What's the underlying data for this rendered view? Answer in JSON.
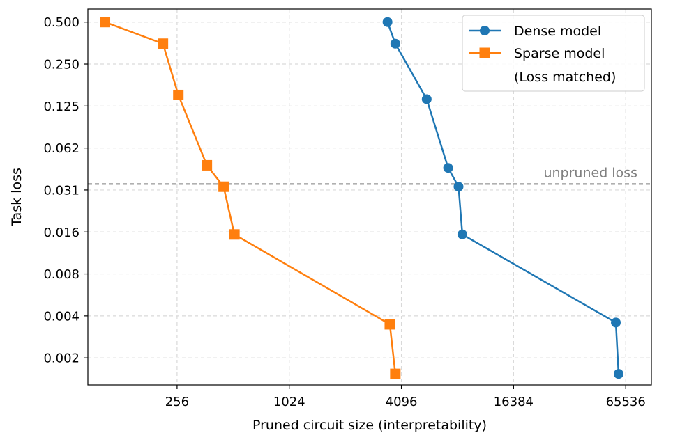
{
  "chart_data": {
    "type": "line",
    "xlabel": "Pruned circuit size (interpretability)",
    "ylabel": "Task loss",
    "x_scale": "log2",
    "y_scale": "log2",
    "xlim": [
      85,
      90000
    ],
    "ylim": [
      0.00125,
      0.62
    ],
    "x_ticks": [
      256,
      1024,
      4096,
      16384,
      65536
    ],
    "x_tick_labels": [
      "256",
      "1024",
      "4096",
      "16384",
      "65536"
    ],
    "y_ticks": [
      0.5,
      0.25,
      0.125,
      0.0625,
      0.03125,
      0.015625,
      0.0078125,
      0.00390625,
      0.001953125
    ],
    "y_tick_labels": [
      "0.500",
      "0.250",
      "0.125",
      "0.062",
      "0.031",
      "0.016",
      "0.008",
      "0.004",
      "0.002"
    ],
    "grid": true,
    "legend_position": "top-right",
    "series": [
      {
        "name": "Dense model",
        "color": "#1f77b4",
        "marker": "circle",
        "x": [
          3450,
          3800,
          5600,
          7300,
          8300,
          8700,
          58000,
          60000
        ],
        "y": [
          0.5,
          0.35,
          0.14,
          0.045,
          0.033,
          0.015,
          0.0035,
          0.0015
        ]
      },
      {
        "name": "Sparse model",
        "color": "#ff7f0e",
        "marker": "square",
        "x": [
          105,
          215,
          260,
          370,
          455,
          520,
          3550,
          3800
        ],
        "y": [
          0.5,
          0.35,
          0.15,
          0.047,
          0.033,
          0.015,
          0.0034,
          0.0015
        ]
      }
    ],
    "legend_note": "(Loss matched)",
    "reference_line": {
      "label": "unpruned loss",
      "y": 0.0345,
      "color": "#808080",
      "style": "dashed"
    }
  }
}
